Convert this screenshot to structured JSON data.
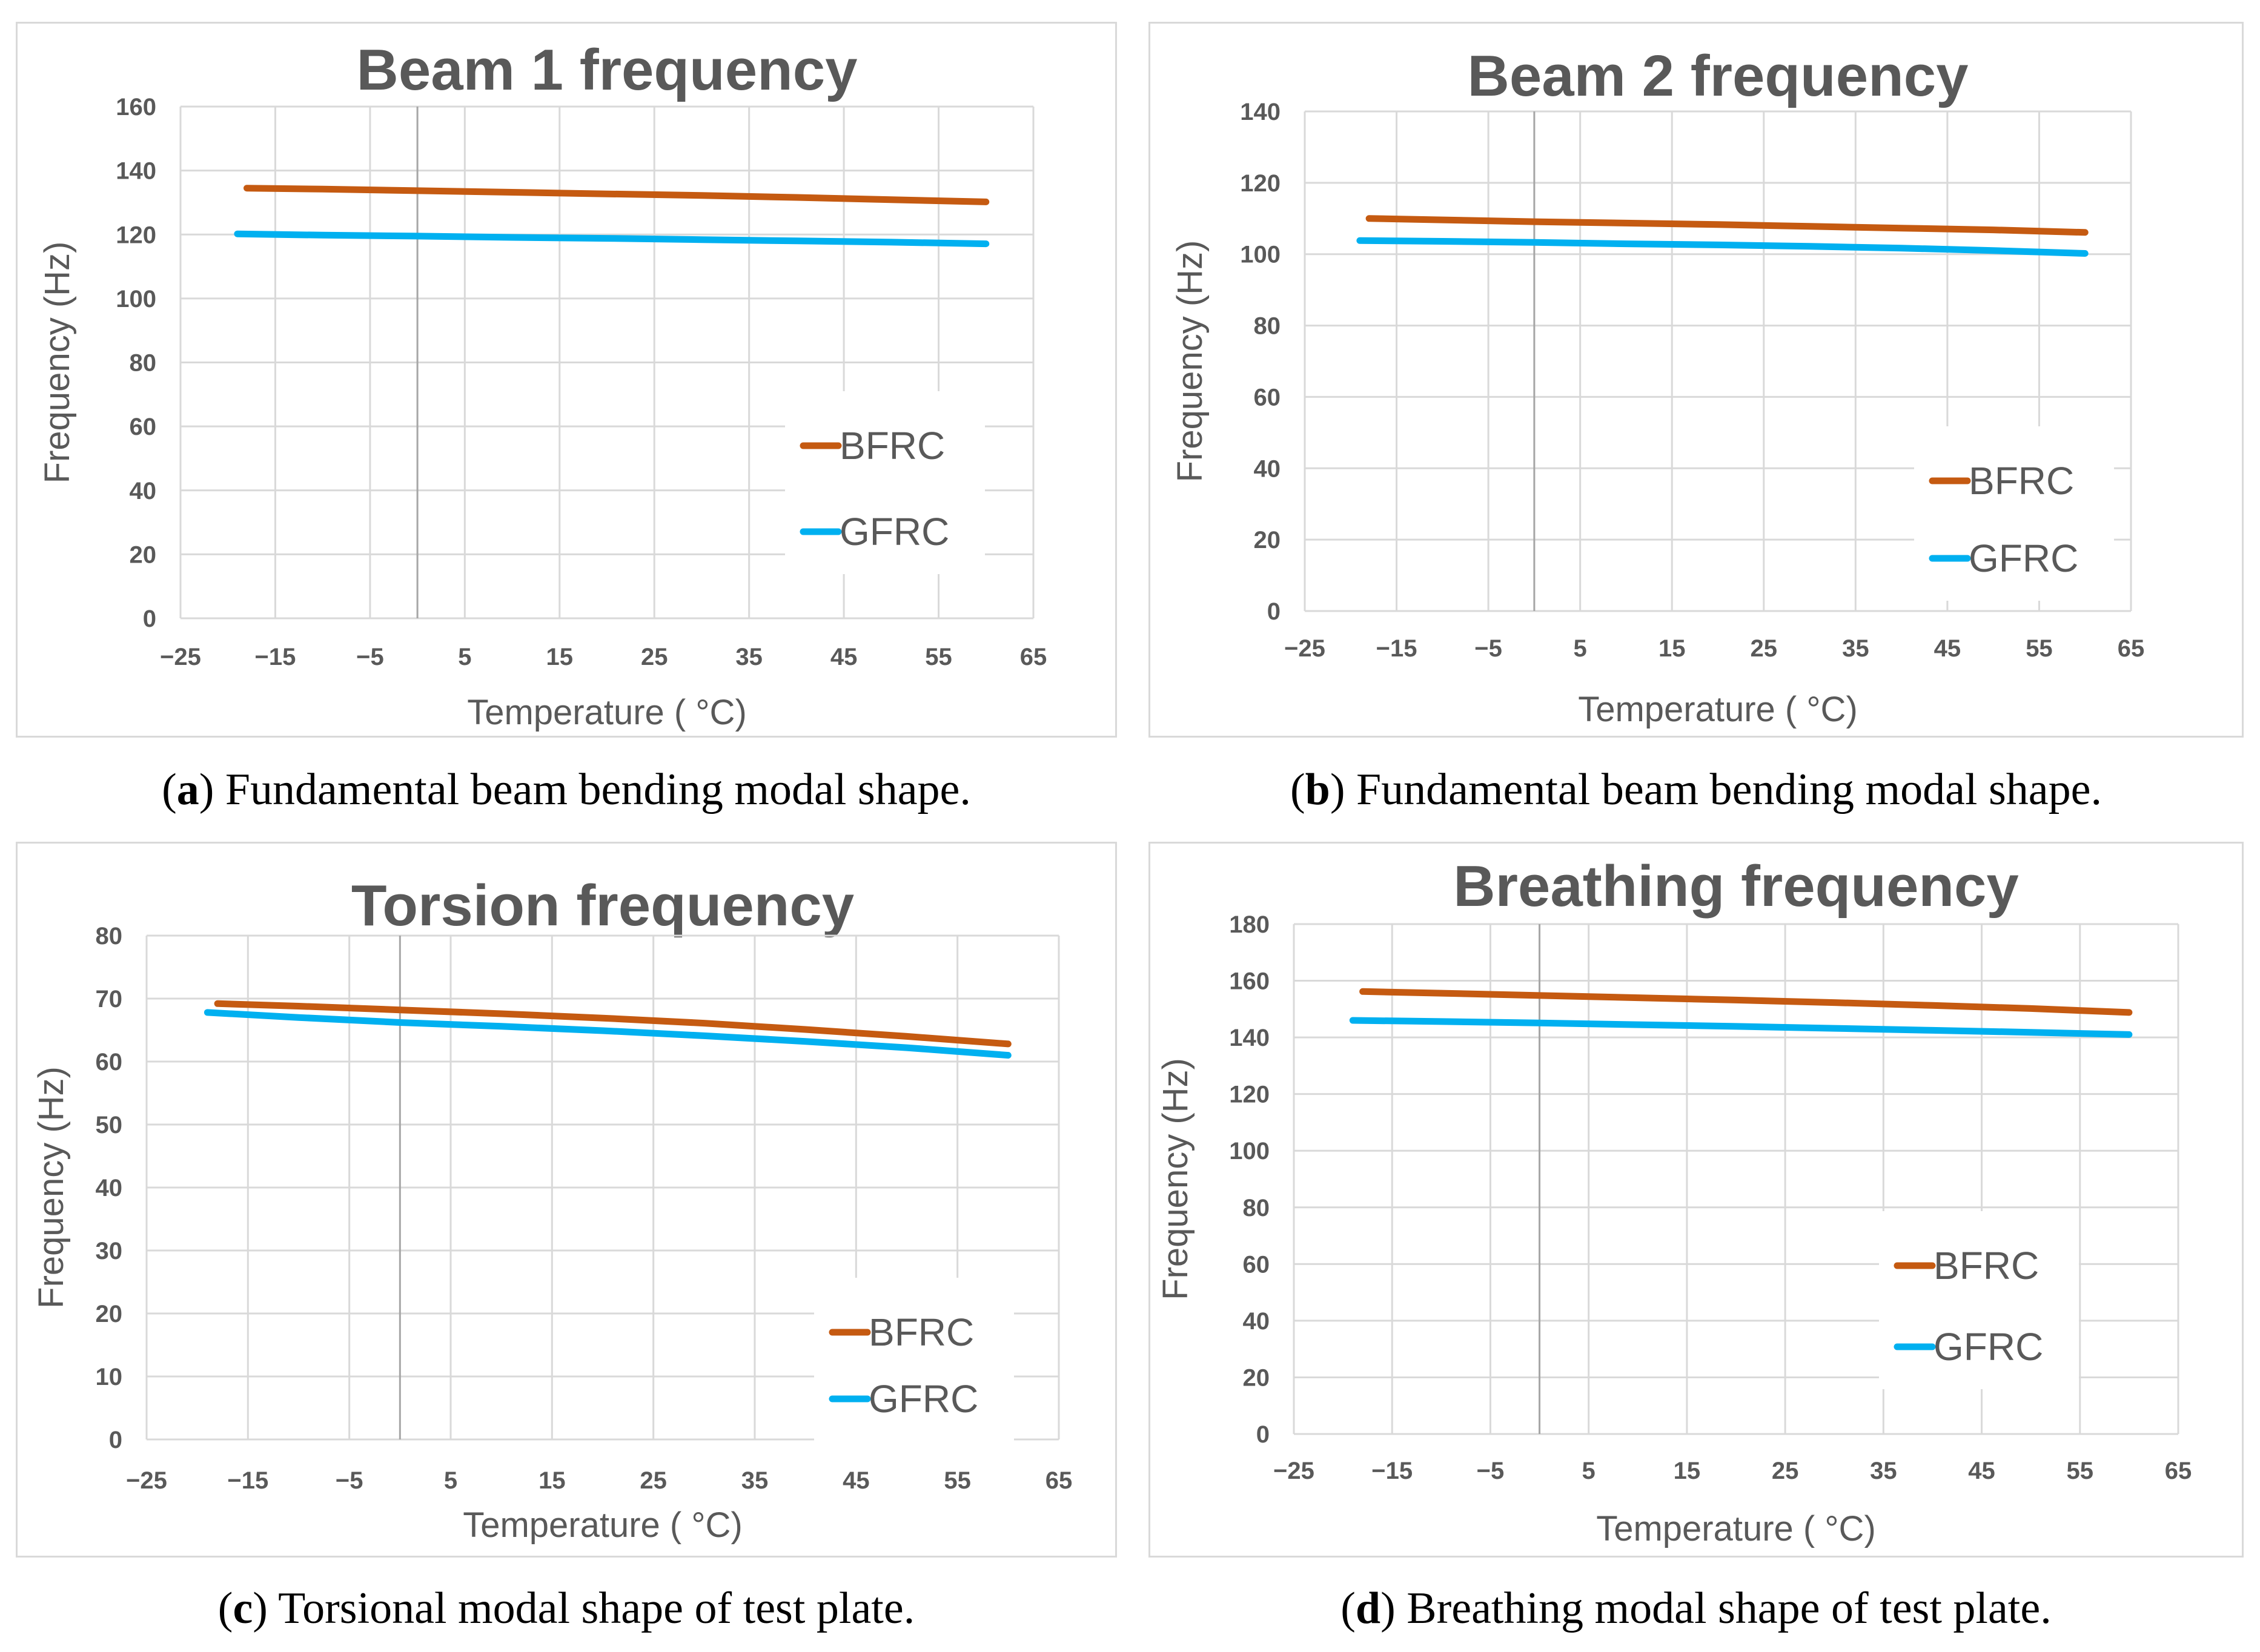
{
  "figure": {
    "captions": [
      {
        "letter": "a",
        "text": "Fundamental beam bending modal shape."
      },
      {
        "letter": "b",
        "text": "Fundamental beam bending modal shape."
      },
      {
        "letter": "c",
        "text": "Torsional modal shape of test plate."
      },
      {
        "letter": "d",
        "text": "Breathing modal shape of test plate."
      }
    ]
  },
  "colors": {
    "bfrc": "#c55a11",
    "gfrc": "#00b0f0",
    "grid": "#d9d9d9",
    "axis_text": "#595959"
  },
  "chart_data": [
    {
      "type": "line",
      "title": "Beam 1 frequency",
      "xlabel": "Temperature ( °C)",
      "ylabel": "Frequency (Hz)",
      "xlim": [
        -25,
        65
      ],
      "ylim": [
        0,
        160
      ],
      "xticks": [
        "−25",
        "−15",
        "−5",
        "5",
        "15",
        "25",
        "35",
        "45",
        "55",
        "65"
      ],
      "yticks": [
        "0",
        "20",
        "40",
        "60",
        "80",
        "100",
        "120",
        "140",
        "160"
      ],
      "legend": "right",
      "series": [
        {
          "name": "BFRC",
          "x": [
            -18,
            -10,
            0,
            10,
            20,
            30,
            40,
            50,
            60
          ],
          "values": [
            134.5,
            134.2,
            133.7,
            133.2,
            132.7,
            132.2,
            131.6,
            130.9,
            130.2
          ]
        },
        {
          "name": "GFRC",
          "x": [
            -19,
            -10,
            0,
            10,
            20,
            30,
            40,
            50,
            60
          ],
          "values": [
            120.2,
            119.8,
            119.5,
            119.1,
            118.8,
            118.4,
            118.0,
            117.6,
            117.1
          ]
        }
      ]
    },
    {
      "type": "line",
      "title": "Beam 2 frequency",
      "xlabel": "Temperature ( °C)",
      "ylabel": "Frequency (Hz)",
      "xlim": [
        -25,
        65
      ],
      "ylim": [
        0,
        140
      ],
      "xticks": [
        "−25",
        "−15",
        "−5",
        "5",
        "15",
        "25",
        "35",
        "45",
        "55",
        "65"
      ],
      "yticks": [
        "0",
        "20",
        "40",
        "60",
        "80",
        "100",
        "120",
        "140"
      ],
      "legend": "right",
      "series": [
        {
          "name": "BFRC",
          "x": [
            -18,
            -10,
            0,
            10,
            20,
            30,
            40,
            50,
            60
          ],
          "values": [
            110.0,
            109.6,
            109.1,
            108.7,
            108.3,
            107.8,
            107.3,
            106.8,
            106.1
          ]
        },
        {
          "name": "GFRC",
          "x": [
            -19,
            -10,
            0,
            10,
            20,
            30,
            40,
            50,
            60
          ],
          "values": [
            103.8,
            103.6,
            103.3,
            102.9,
            102.6,
            102.2,
            101.7,
            101.0,
            100.2
          ]
        }
      ]
    },
    {
      "type": "line",
      "title": "Torsion  frequency",
      "xlabel": "Temperature ( °C)",
      "ylabel": "Frequency (Hz)",
      "xlim": [
        -25,
        65
      ],
      "ylim": [
        0,
        80
      ],
      "xticks": [
        "−25",
        "−15",
        "−5",
        "5",
        "15",
        "25",
        "35",
        "45",
        "55",
        "65"
      ],
      "yticks": [
        "0",
        "10",
        "20",
        "30",
        "40",
        "50",
        "60",
        "70",
        "80"
      ],
      "legend": "right",
      "series": [
        {
          "name": "BFRC",
          "x": [
            -18,
            -10,
            0,
            10,
            20,
            30,
            40,
            50,
            60
          ],
          "values": [
            69.2,
            68.8,
            68.2,
            67.6,
            66.9,
            66.1,
            65.1,
            64.0,
            62.8
          ]
        },
        {
          "name": "GFRC",
          "x": [
            -19,
            -10,
            0,
            10,
            20,
            30,
            40,
            50,
            60
          ],
          "values": [
            67.8,
            67.0,
            66.2,
            65.6,
            64.9,
            64.1,
            63.2,
            62.2,
            61.0
          ]
        }
      ]
    },
    {
      "type": "line",
      "title": "Breathing  frequency",
      "xlabel": "Temperature ( °C)",
      "ylabel": "Frequency (Hz)",
      "xlim": [
        -25,
        65
      ],
      "ylim": [
        0,
        180
      ],
      "xticks": [
        "−25",
        "−15",
        "−5",
        "5",
        "15",
        "25",
        "35",
        "45",
        "55",
        "65"
      ],
      "yticks": [
        "0",
        "20",
        "40",
        "60",
        "80",
        "100",
        "120",
        "140",
        "160",
        "180"
      ],
      "legend": "right",
      "series": [
        {
          "name": "BFRC",
          "x": [
            -18,
            -10,
            0,
            10,
            20,
            30,
            40,
            50,
            60
          ],
          "values": [
            156.2,
            155.6,
            154.8,
            154.0,
            153.2,
            152.3,
            151.3,
            150.2,
            148.8
          ]
        },
        {
          "name": "GFRC",
          "x": [
            -19,
            -10,
            0,
            10,
            20,
            30,
            40,
            50,
            60
          ],
          "values": [
            146.0,
            145.6,
            145.1,
            144.5,
            143.9,
            143.2,
            142.5,
            141.8,
            141.0
          ]
        }
      ]
    }
  ]
}
